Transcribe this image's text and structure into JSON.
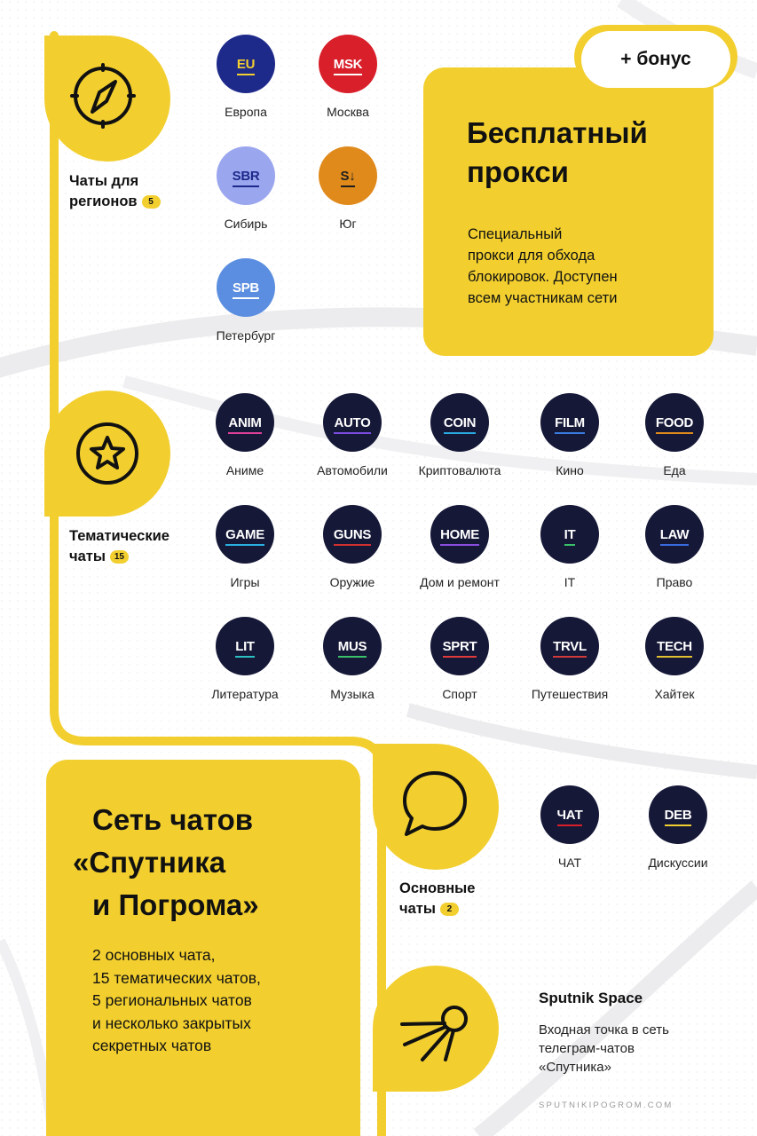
{
  "footer": {
    "site": "SPUTNIKIPOGROM.COM"
  },
  "regions": {
    "label_line1": "Чаты для",
    "label_line2": "регионов",
    "count": "5",
    "chats": [
      {
        "code": "EU",
        "name": "Европа",
        "bg": "#1e2a8a",
        "text": "#f2cf2f",
        "accent": "#f2cf2f"
      },
      {
        "code": "MSK",
        "name": "Москва",
        "bg": "#d81f2a",
        "text": "#ffffff",
        "accent": "#ffffff"
      },
      {
        "code": "SBR",
        "name": "Сибирь",
        "bg": "#9aa6ee",
        "text": "#1e2a8a",
        "accent": "#1e2a8a"
      },
      {
        "code": "S↓",
        "name": "Юг",
        "bg": "#e08a1c",
        "text": "#1e1e1e",
        "accent": "#1e1e1e"
      },
      {
        "code": "SPB",
        "name": "Петербург",
        "bg": "#5b8ee0",
        "text": "#ffffff",
        "accent": "#ffffff"
      }
    ]
  },
  "proxy": {
    "bonus": "+ бонус",
    "title_line1": "Бесплатный",
    "title_line2": "прокси",
    "desc_line1": "Специальный",
    "desc_line2": "прокси для обхода",
    "desc_line3": "блокировок. Доступен",
    "desc_line4": "всем участникам сети"
  },
  "thematic": {
    "label_line1": "Тематические",
    "label_line2": "чаты",
    "count": "15",
    "chats": [
      {
        "code": "ANIM",
        "name": "Аниме",
        "accent": "#e0409a"
      },
      {
        "code": "AUTO",
        "name": "Автомобили",
        "accent": "#7a4de0"
      },
      {
        "code": "COIN",
        "name": "Криптовалюта",
        "accent": "#2aa9e0"
      },
      {
        "code": "FILM",
        "name": "Кино",
        "accent": "#3a7be0"
      },
      {
        "code": "FOOD",
        "name": "Еда",
        "accent": "#e08a1c"
      },
      {
        "code": "GAME",
        "name": "Игры",
        "accent": "#2ab0e0"
      },
      {
        "code": "GUNS",
        "name": "Оружие",
        "accent": "#d03030"
      },
      {
        "code": "HOME",
        "name": "Дом и ремонт",
        "accent": "#8a4de0"
      },
      {
        "code": "IT",
        "name": "IT",
        "accent": "#3ac06a"
      },
      {
        "code": "LAW",
        "name": "Право",
        "accent": "#3a6ae0"
      },
      {
        "code": "LIT",
        "name": "Литература",
        "accent": "#2ac0c0"
      },
      {
        "code": "MUS",
        "name": "Музыка",
        "accent": "#3ac06a"
      },
      {
        "code": "SPRT",
        "name": "Спорт",
        "accent": "#e03a3a"
      },
      {
        "code": "TRVL",
        "name": "Путешествия",
        "accent": "#d03a3a"
      },
      {
        "code": "TECH",
        "name": "Хайтек",
        "accent": "#e0c030"
      }
    ]
  },
  "network": {
    "title_line1": "Сеть чатов",
    "title_line2": "«Спутника",
    "title_line3": "и Погрома»",
    "desc_line1": "2 основных чата,",
    "desc_line2": "15 тематических чатов,",
    "desc_line3": "5 региональных чатов",
    "desc_line4": "и несколько закрытых",
    "desc_line5": "секретных чатов"
  },
  "main_chats": {
    "label_line1": "Основные",
    "label_line2": "чаты",
    "count": "2",
    "chats": [
      {
        "code": "ЧАТ",
        "name": "ЧАТ",
        "accent": "#d81f2a"
      },
      {
        "code": "DEB",
        "name": "Дискуссии",
        "accent": "#f2cf2f"
      }
    ]
  },
  "space": {
    "title": "Sputnik Space",
    "desc_line1": "Входная точка в сеть",
    "desc_line2": "телеграм-чатов",
    "desc_line3": "«Спутника»"
  },
  "colors": {
    "accent": "#f2cf2f",
    "dark_disc": "#151837",
    "text": "#111111"
  },
  "icons": [
    "compass-icon",
    "star-icon",
    "chat-bubble-icon",
    "satellite-icon"
  ]
}
